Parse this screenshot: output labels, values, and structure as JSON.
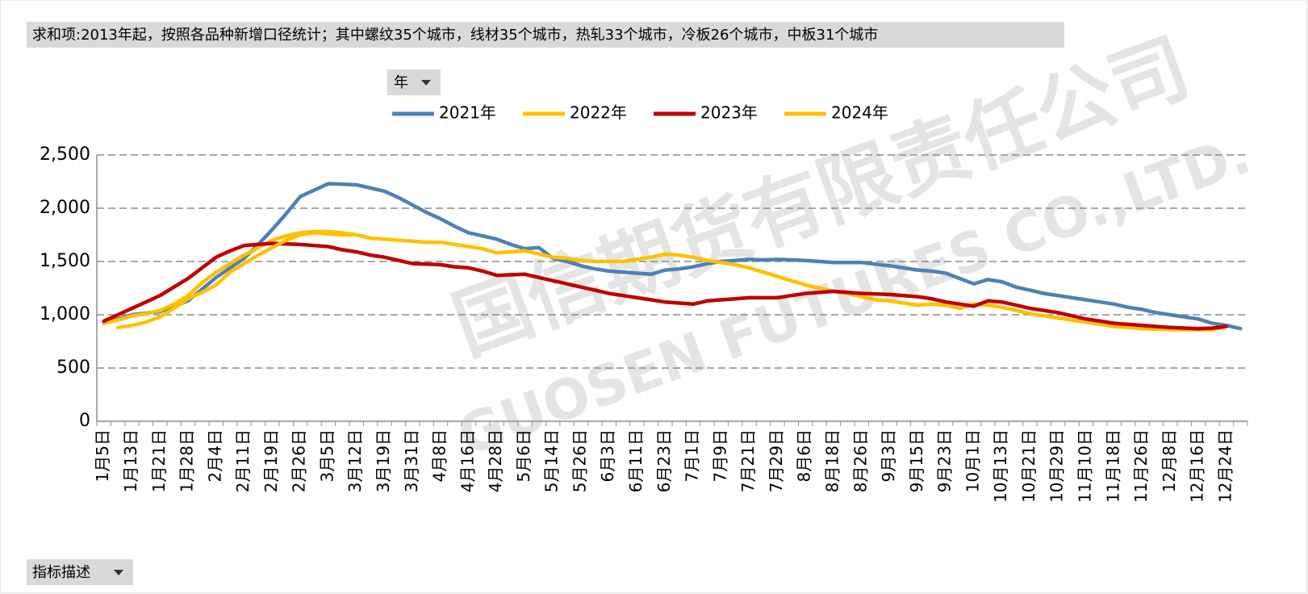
{
  "filter_note": "求和项:2013年起，按照各品种新增口径统计；其中螺纹35个城市，线材35个城市，热轧33个城市，冷板26个城市，中板31个城市",
  "controls": {
    "year_filter": "年",
    "indicator_filter": "指标描述"
  },
  "watermark": {
    "cn": "国信期货有限责任公司",
    "en": "GUOSEN FUTURES CO.,LTD."
  },
  "chart_data": {
    "type": "line",
    "grid": true,
    "legend": "top",
    "categories": [
      "1月5日",
      null,
      "1月13日",
      null,
      "1月21日",
      null,
      "1月28日",
      null,
      "2月4日",
      null,
      "2月11日",
      null,
      "2月19日",
      null,
      "2月26日",
      null,
      "3月5日",
      null,
      "3月12日",
      null,
      "3月19日",
      null,
      "3月31日",
      null,
      "4月8日",
      null,
      "4月16日",
      null,
      "4月28日",
      null,
      "5月6日",
      null,
      "5月14日",
      null,
      "5月26日",
      null,
      "6月3日",
      null,
      "6月11日",
      null,
      "6月23日",
      null,
      "7月1日",
      null,
      "7月9日",
      null,
      "7月21日",
      null,
      "7月29日",
      null,
      "8月6日",
      null,
      "8月18日",
      null,
      "8月26日",
      null,
      "9月3日",
      null,
      "9月15日",
      null,
      "9月23日",
      null,
      "10月1日",
      null,
      "10月13日",
      null,
      "10月21日",
      null,
      "10月29日",
      null,
      "11月10日",
      null,
      "11月18日",
      null,
      "11月26日",
      null,
      "12月8日",
      null,
      "12月16日",
      null,
      "12月24日",
      null
    ],
    "ylim": [
      0,
      2500
    ],
    "yticks": [
      0,
      500,
      {
        "value": 1000,
        "label": "1,000"
      },
      {
        "value": 1500,
        "label": "1,500"
      },
      {
        "value": 2000,
        "label": "2,000"
      },
      {
        "value": 2500,
        "label": "2,500"
      }
    ],
    "series": [
      {
        "name": "2021年",
        "color": "#4e81b4",
        "values": [
          920,
          960,
          1000,
          1015,
          1030,
          1080,
          1130,
          1240,
          1350,
          1440,
          1530,
          1660,
          1800,
          1950,
          2110,
          2170,
          2230,
          2225,
          2220,
          2190,
          2160,
          2100,
          2030,
          1960,
          1900,
          1830,
          1770,
          1740,
          1710,
          1660,
          1620,
          1630,
          1530,
          1500,
          1460,
          1430,
          1410,
          1400,
          1390,
          1380,
          1420,
          1430,
          1450,
          1480,
          1500,
          1510,
          1520,
          1515,
          1520,
          1515,
          1510,
          1500,
          1490,
          1490,
          1490,
          1475,
          1460,
          1440,
          1420,
          1410,
          1390,
          1340,
          1290,
          1330,
          1310,
          1260,
          1230,
          1200,
          1180,
          1160,
          1140,
          1120,
          1100,
          1070,
          1050,
          1020,
          1000,
          980,
          960,
          920,
          900,
          870
        ]
      },
      {
        "name": "2022年",
        "color": "#ffc000",
        "values": [
          920,
          950,
          990,
          1010,
          1040,
          1100,
          1180,
          1300,
          1400,
          1480,
          1560,
          1630,
          1700,
          1740,
          1770,
          1780,
          1780,
          1770,
          1750,
          1720,
          1710,
          1700,
          1690,
          1680,
          1680,
          1660,
          1640,
          1620,
          1580,
          1590,
          1600,
          1570,
          1540,
          1530,
          1510,
          1500,
          1500,
          1500,
          1520,
          1540,
          1570,
          1560,
          1540,
          1510,
          1490,
          1470,
          1440,
          1400,
          1360,
          1320,
          1280,
          1250,
          1220,
          1200,
          1170,
          1140,
          1130,
          1110,
          1090,
          1100,
          1090,
          1060,
          1100,
          1090,
          1070,
          1040,
          1010,
          990,
          970,
          950,
          930,
          910,
          890,
          880,
          870,
          865,
          860,
          860,
          860,
          860,
          890,
          null
        ]
      },
      {
        "name": "2023年",
        "color": "#c00000",
        "values": [
          940,
          1000,
          1060,
          1120,
          1180,
          1260,
          1340,
          1440,
          1540,
          1600,
          1650,
          1660,
          1670,
          1665,
          1660,
          1650,
          1640,
          1610,
          1590,
          1560,
          1540,
          1510,
          1480,
          1475,
          1470,
          1450,
          1440,
          1410,
          1370,
          1375,
          1380,
          1350,
          1320,
          1290,
          1260,
          1230,
          1200,
          1180,
          1160,
          1140,
          1120,
          1110,
          1100,
          1130,
          1140,
          1150,
          1160,
          1160,
          1160,
          1180,
          1200,
          1210,
          1220,
          1210,
          1200,
          1195,
          1190,
          1180,
          1170,
          1150,
          1120,
          1100,
          1080,
          1130,
          1120,
          1090,
          1060,
          1040,
          1020,
          990,
          960,
          940,
          920,
          910,
          900,
          890,
          880,
          875,
          870,
          875,
          890,
          null
        ]
      },
      {
        "name": "2024年",
        "color": "#ffc000",
        "values": [
          null,
          880,
          900,
          930,
          980,
          1060,
          1150,
          1210,
          1280,
          1400,
          1480,
          1560,
          1630,
          1700,
          1750,
          1770,
          1760,
          1750,
          1750,
          null,
          null,
          null,
          null,
          null,
          null,
          null,
          null,
          null,
          null,
          null,
          null,
          null,
          null,
          null,
          null,
          null,
          null,
          null,
          null,
          null,
          null,
          null,
          null,
          null,
          null,
          null,
          null,
          null,
          null,
          null,
          null,
          null,
          null,
          null,
          null,
          null,
          null,
          null,
          null,
          null,
          null,
          null,
          null,
          null,
          null,
          null,
          null,
          null,
          null,
          null,
          null,
          null,
          null,
          null,
          null,
          null,
          null,
          null,
          null,
          null,
          null,
          null
        ]
      }
    ]
  }
}
